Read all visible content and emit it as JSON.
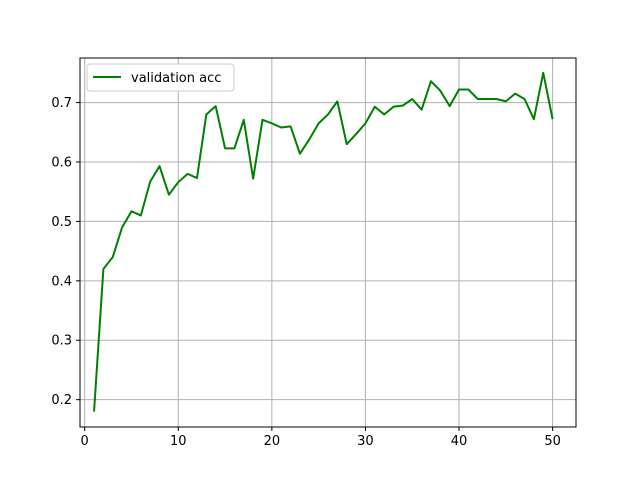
{
  "chart_data": {
    "type": "line",
    "grid": true,
    "legend_position": "top-left",
    "xlim": [
      -0.5,
      52.5
    ],
    "ylim": [
      0.154,
      0.775
    ],
    "x_ticks": [
      0,
      10,
      20,
      30,
      40,
      50
    ],
    "y_ticks": [
      0.2,
      0.3,
      0.4,
      0.5,
      0.6,
      0.7
    ],
    "x_tick_labels": [
      "0",
      "10",
      "20",
      "30",
      "40",
      "50"
    ],
    "y_tick_labels": [
      "0.2",
      "0.3",
      "0.4",
      "0.5",
      "0.6",
      "0.7"
    ],
    "series": [
      {
        "name": "validation acc",
        "color": "#008000",
        "x": [
          1,
          2,
          3,
          4,
          5,
          6,
          7,
          8,
          9,
          10,
          11,
          12,
          13,
          14,
          15,
          16,
          17,
          18,
          19,
          20,
          21,
          22,
          23,
          24,
          25,
          26,
          27,
          28,
          29,
          30,
          31,
          32,
          33,
          34,
          35,
          36,
          37,
          38,
          39,
          40,
          41,
          42,
          43,
          44,
          45,
          46,
          47,
          48,
          49,
          50
        ],
        "y": [
          0.18,
          0.42,
          0.44,
          0.49,
          0.517,
          0.51,
          0.567,
          0.593,
          0.545,
          0.566,
          0.58,
          0.573,
          0.68,
          0.694,
          0.623,
          0.623,
          0.671,
          0.572,
          0.671,
          0.665,
          0.658,
          0.66,
          0.614,
          0.638,
          0.665,
          0.68,
          0.702,
          0.63,
          0.647,
          0.665,
          0.693,
          0.68,
          0.693,
          0.695,
          0.706,
          0.688,
          0.736,
          0.72,
          0.694,
          0.722,
          0.722,
          0.706,
          0.706,
          0.706,
          0.702,
          0.715,
          0.706,
          0.672,
          0.75,
          0.672
        ]
      }
    ]
  }
}
